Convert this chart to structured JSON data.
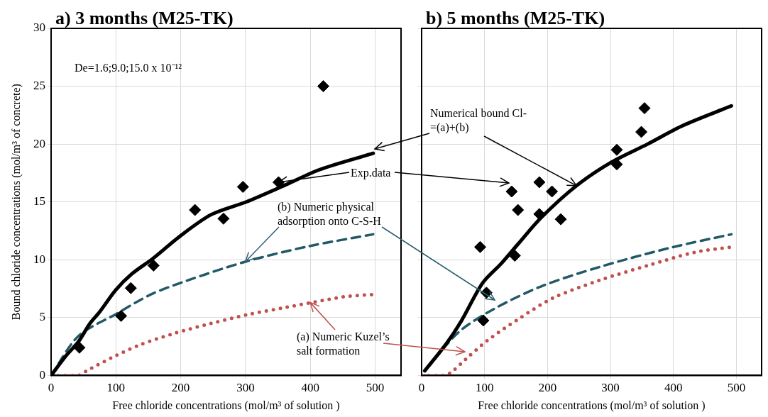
{
  "chart_data": [
    {
      "type": "scatter",
      "title": "a) 3 months (M25-TK)",
      "xlabel": "Free chloride concentrations (mol/m³ of solution )",
      "ylabel": "Bound chloride concentrations (mol/m³ of concrete)",
      "xlim": [
        0,
        540
      ],
      "xticks": [
        0,
        100,
        200,
        300,
        400,
        500
      ],
      "ylim": [
        0,
        30
      ],
      "yticks": [
        0,
        5,
        10,
        15,
        20,
        25,
        30
      ],
      "grid": true,
      "annotations": [
        "De=1.6;9.0;15.0 x 10⁻¹²",
        {
          "text": "Exp.data",
          "x": 351,
          "y": 16.7
        },
        {
          "text": "(b) Numeric physical adsorption onto C-S-H",
          "x": 300,
          "y": 9.85
        },
        {
          "text": "(a) Numeric Kuzel’s salt formation",
          "x": 400,
          "y": 6.3
        }
      ],
      "series": [
        {
          "type": "scatter",
          "marker": "diamond",
          "color": "#000000",
          "x": [
            43.7,
            108,
            123,
            158,
            222,
            266,
            296,
            351,
            420
          ],
          "values": [
            2.4,
            5.15,
            7.55,
            9.5,
            14.3,
            13.55,
            16.3,
            16.7,
            25.0
          ]
        },
        {
          "type": "line",
          "line_style": "solid",
          "color": "#000000",
          "x": [
            0,
            23,
            42,
            60,
            75,
            100,
            124,
            157,
            198,
            247,
            301,
            359,
            415,
            497
          ],
          "values": [
            0,
            1.7,
            2.9,
            4.5,
            5.5,
            7.4,
            8.75,
            10.1,
            12.0,
            13.9,
            15.0,
            16.4,
            17.8,
            19.2
          ]
        },
        {
          "type": "line",
          "line_style": "dashed",
          "color": "#215968",
          "x": [
            0,
            42,
            100,
            154,
            210,
            301,
            396,
            497
          ],
          "values": [
            0,
            3.4,
            5.3,
            7.0,
            8.2,
            9.85,
            11.15,
            12.2
          ]
        },
        {
          "type": "line",
          "line_style": "dotted",
          "color": "#c0504d",
          "x": [
            0,
            42,
            55,
            94,
            135,
            191,
            247,
            307,
            359,
            407,
            452,
            497
          ],
          "values": [
            0,
            0,
            0.4,
            1.55,
            2.6,
            3.65,
            4.5,
            5.3,
            5.85,
            6.35,
            6.8,
            7.0
          ]
        }
      ]
    },
    {
      "type": "scatter",
      "title": "b) 5 months (M25-TK)",
      "xlabel": "Free chloride concentrations (mol/m³ of solution )",
      "xlim": [
        0,
        540
      ],
      "xticks": [
        0,
        100,
        200,
        300,
        400,
        500
      ],
      "ylim": [
        0,
        30
      ],
      "yticks": [
        0,
        5,
        10,
        15,
        20,
        25,
        30
      ],
      "grid": true,
      "tick_labels": "x",
      "annotations": [
        {
          "text": "Numerical bound Cl- =(a)+(b)",
          "x": 246,
          "y": 16.4
        }
      ],
      "series": [
        {
          "type": "scatter",
          "marker": "diamond",
          "color": "#000000",
          "x": [
            93,
            98,
            103,
            143,
            153,
            148,
            187,
            187,
            207,
            221,
            310,
            310,
            349,
            354
          ],
          "values": [
            11.1,
            4.75,
            7.15,
            15.9,
            14.3,
            10.35,
            16.7,
            13.95,
            15.9,
            13.5,
            19.5,
            18.25,
            21.05,
            23.1
          ]
        },
        {
          "type": "line",
          "line_style": "solid",
          "color": "#000000",
          "x": [
            5,
            40,
            63,
            97,
            127,
            153,
            190,
            246,
            302,
            359,
            415,
            492
          ],
          "values": [
            0.4,
            2.8,
            4.7,
            8.0,
            9.7,
            11.35,
            13.65,
            16.4,
            18.45,
            20.0,
            21.6,
            23.3
          ]
        },
        {
          "type": "line",
          "line_style": "dashed",
          "color": "#215968",
          "x": [
            5,
            59,
            115,
            190,
            284,
            396,
            492
          ],
          "values": [
            0.4,
            3.75,
            5.75,
            7.7,
            9.4,
            11.05,
            12.2
          ]
        },
        {
          "type": "line",
          "line_style": "dotted",
          "color": "#c0504d",
          "x": [
            0,
            37,
            50,
            70,
            104,
            153,
            209,
            284,
            359,
            434,
            492
          ],
          "values": [
            0,
            0,
            0.4,
            1.4,
            3.0,
            4.85,
            6.7,
            8.25,
            9.5,
            10.65,
            11.1
          ]
        }
      ]
    }
  ]
}
